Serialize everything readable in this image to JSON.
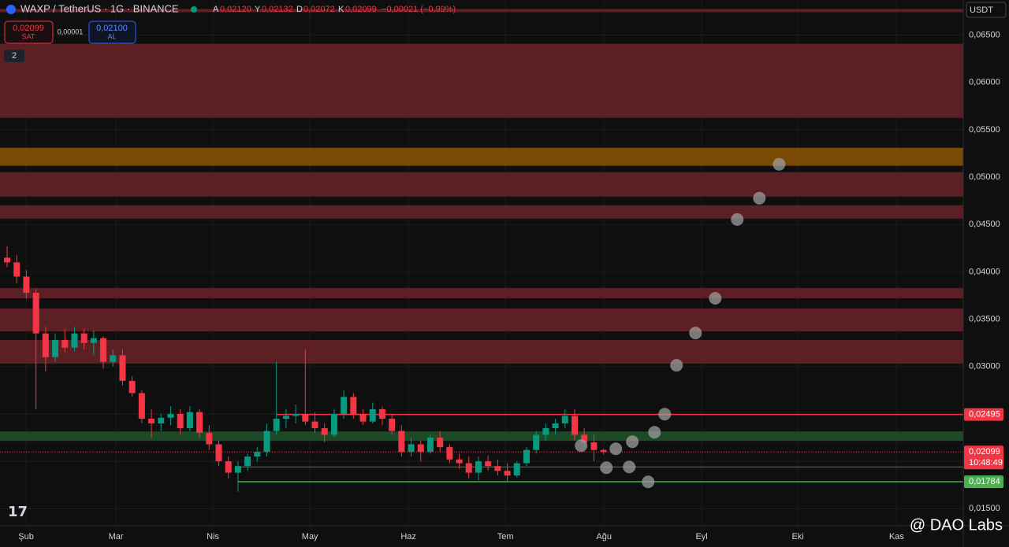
{
  "header": {
    "symbol": "WAXP / TetherUS · 1G · BINANCE",
    "ohlc": [
      {
        "key": "A",
        "value": "0,02120"
      },
      {
        "key": "Y",
        "value": "0,02132"
      },
      {
        "key": "D",
        "value": "0,02072"
      },
      {
        "key": "K",
        "value": "0,02099"
      }
    ],
    "change": "−0,00021 (−0,99%)",
    "sell_price": "0,02099",
    "sell_label": "SAT",
    "spread": "0,00001",
    "buy_price": "0,02100",
    "buy_label": "AL",
    "indicators": "2",
    "currency": "USDT",
    "watermark": "@ DAO Labs"
  },
  "chart_data": {
    "type": "candlestick",
    "up_color": "#089981",
    "down_color": "#f23645",
    "open": [
      0.0415,
      0.041,
      0.0395,
      0.0378,
      0.0335,
      0.031,
      0.0328,
      0.032,
      0.0335,
      0.0325,
      0.033,
      0.0305,
      0.0312,
      0.0285,
      0.0272,
      0.0245,
      0.024,
      0.0246,
      0.025,
      0.0235,
      0.0252,
      0.023,
      0.0218,
      0.02,
      0.0188,
      0.0195,
      0.0205,
      0.021,
      0.0232,
      0.0245,
      0.0248,
      0.025,
      0.0242,
      0.0235,
      0.0228,
      0.025,
      0.0268,
      0.025,
      0.0242,
      0.0255,
      0.0245,
      0.0232,
      0.021,
      0.0218,
      0.021,
      0.0225,
      0.0215,
      0.0202,
      0.0198,
      0.0188,
      0.02,
      0.0195,
      0.019,
      0.0185,
      0.0198,
      0.0212,
      0.0228,
      0.0235,
      0.024,
      0.0248,
      0.0228,
      0.022,
      0.0212
    ],
    "high": [
      0.0427,
      0.0418,
      0.0402,
      0.0382,
      0.0342,
      0.0335,
      0.034,
      0.0342,
      0.034,
      0.0338,
      0.0332,
      0.0318,
      0.0318,
      0.029,
      0.0275,
      0.0255,
      0.025,
      0.0258,
      0.0255,
      0.0258,
      0.0255,
      0.0238,
      0.0222,
      0.0205,
      0.02,
      0.0208,
      0.0215,
      0.024,
      0.0305,
      0.0255,
      0.026,
      0.0318,
      0.0252,
      0.024,
      0.0255,
      0.0275,
      0.0272,
      0.0255,
      0.0262,
      0.0258,
      0.025,
      0.0238,
      0.0225,
      0.0222,
      0.0228,
      0.0232,
      0.0218,
      0.0208,
      0.0205,
      0.0205,
      0.0206,
      0.0202,
      0.0198,
      0.02,
      0.0215,
      0.0232,
      0.024,
      0.0245,
      0.0255,
      0.0255,
      0.0235,
      0.0228,
      0.02132
    ],
    "low": [
      0.0405,
      0.0388,
      0.0372,
      0.0255,
      0.0295,
      0.0305,
      0.0315,
      0.0316,
      0.0318,
      0.0312,
      0.0298,
      0.03,
      0.028,
      0.0268,
      0.024,
      0.0225,
      0.0232,
      0.0238,
      0.0228,
      0.0232,
      0.0225,
      0.0212,
      0.0195,
      0.0182,
      0.0168,
      0.019,
      0.02,
      0.0205,
      0.0228,
      0.0235,
      0.024,
      0.0238,
      0.023,
      0.022,
      0.0225,
      0.0245,
      0.0245,
      0.0238,
      0.024,
      0.0238,
      0.0228,
      0.0205,
      0.0205,
      0.02,
      0.0208,
      0.021,
      0.0198,
      0.0192,
      0.0182,
      0.018,
      0.019,
      0.0185,
      0.0178,
      0.0183,
      0.0195,
      0.0208,
      0.0222,
      0.0228,
      0.0235,
      0.0222,
      0.0215,
      0.02,
      0.02072
    ],
    "close": [
      0.041,
      0.0395,
      0.0378,
      0.0335,
      0.031,
      0.0328,
      0.032,
      0.0335,
      0.0325,
      0.033,
      0.0305,
      0.0312,
      0.0285,
      0.0272,
      0.0245,
      0.024,
      0.0246,
      0.025,
      0.0235,
      0.0252,
      0.023,
      0.0218,
      0.02,
      0.0188,
      0.0195,
      0.0205,
      0.021,
      0.0232,
      0.0245,
      0.0248,
      0.025,
      0.0242,
      0.0235,
      0.0228,
      0.025,
      0.0268,
      0.025,
      0.0242,
      0.0255,
      0.0245,
      0.0232,
      0.021,
      0.0218,
      0.021,
      0.0225,
      0.0215,
      0.0202,
      0.0198,
      0.0188,
      0.02,
      0.0195,
      0.019,
      0.0185,
      0.0198,
      0.0212,
      0.0228,
      0.0235,
      0.024,
      0.0248,
      0.0228,
      0.022,
      0.0212,
      0.02099
    ],
    "xlim": [
      -0.74,
      99.4
    ],
    "xticks": [
      {
        "value": 1.97,
        "label": "Şub"
      },
      {
        "value": 11.31,
        "label": "Mar"
      },
      {
        "value": 21.39,
        "label": "Nis"
      },
      {
        "value": 31.48,
        "label": "May"
      },
      {
        "value": 41.72,
        "label": "Haz"
      },
      {
        "value": 51.8,
        "label": "Tem"
      },
      {
        "value": 62.05,
        "label": "Ağu"
      },
      {
        "value": 72.2,
        "label": "Eyl"
      },
      {
        "value": 82.2,
        "label": "Eki"
      },
      {
        "value": 92.46,
        "label": "Kas"
      }
    ],
    "ylim": [
      0.0132,
      0.0687
    ],
    "yticks": [
      {
        "value": 0.065,
        "label": "0,06500"
      },
      {
        "value": 0.06,
        "label": "0,06000"
      },
      {
        "value": 0.055,
        "label": "0,05500"
      },
      {
        "value": 0.05,
        "label": "0,05000"
      },
      {
        "value": 0.045,
        "label": "0,04500"
      },
      {
        "value": 0.04,
        "label": "0,04000"
      },
      {
        "value": 0.035,
        "label": "0,03500"
      },
      {
        "value": 0.03,
        "label": "0,03000"
      },
      {
        "value": 0.025,
        "label": "0,02500"
      },
      {
        "value": 0.02,
        "label": "0,02000"
      },
      {
        "value": 0.015,
        "label": "0,01500"
      }
    ],
    "grid": true,
    "zones": [
      {
        "from": 0.06741,
        "to": 0.06775,
        "color": "#5c1f24"
      },
      {
        "from": 0.05626,
        "to": 0.06408,
        "color": "#5c1f24"
      },
      {
        "from": 0.0512,
        "to": 0.0531,
        "color": "#7a4a05"
      },
      {
        "from": 0.04794,
        "to": 0.05052,
        "color": "#5c1f24"
      },
      {
        "from": 0.04562,
        "to": 0.04703,
        "color": "#5c1f24"
      },
      {
        "from": 0.03721,
        "to": 0.0383,
        "color": "#5c1f24"
      },
      {
        "from": 0.03372,
        "to": 0.03613,
        "color": "#5c1f24"
      },
      {
        "from": 0.03031,
        "to": 0.03281,
        "color": "#5c1f24"
      },
      {
        "from": 0.02216,
        "to": 0.02315,
        "color": "#1d4a26"
      }
    ],
    "levels": [
      {
        "value": 0.02495,
        "label": "0,02495",
        "color": "#f23645",
        "start": 28
      },
      {
        "value": 0.01784,
        "label": "0,01784",
        "color": "#4caf50",
        "start": 24
      },
      {
        "value": 0.0194,
        "color": "#3d5a40",
        "start": 24
      }
    ],
    "last_price": {
      "value": 0.02099,
      "label": "0,02099",
      "countdown": "10:48:49",
      "color": "#f23645"
    },
    "projection": {
      "color": "#9e9e9e",
      "x": [
        59.67,
        62.3,
        63.28,
        64.67,
        65.0,
        66.64,
        67.3,
        68.36,
        69.59,
        71.56,
        73.61,
        75.9,
        78.2,
        80.25
      ],
      "values": [
        0.02166,
        0.01933,
        0.02132,
        0.01941,
        0.02207,
        0.01783,
        0.02307,
        0.02498,
        0.03014,
        0.03355,
        0.03721,
        0.04553,
        0.04778,
        0.05136
      ]
    }
  }
}
